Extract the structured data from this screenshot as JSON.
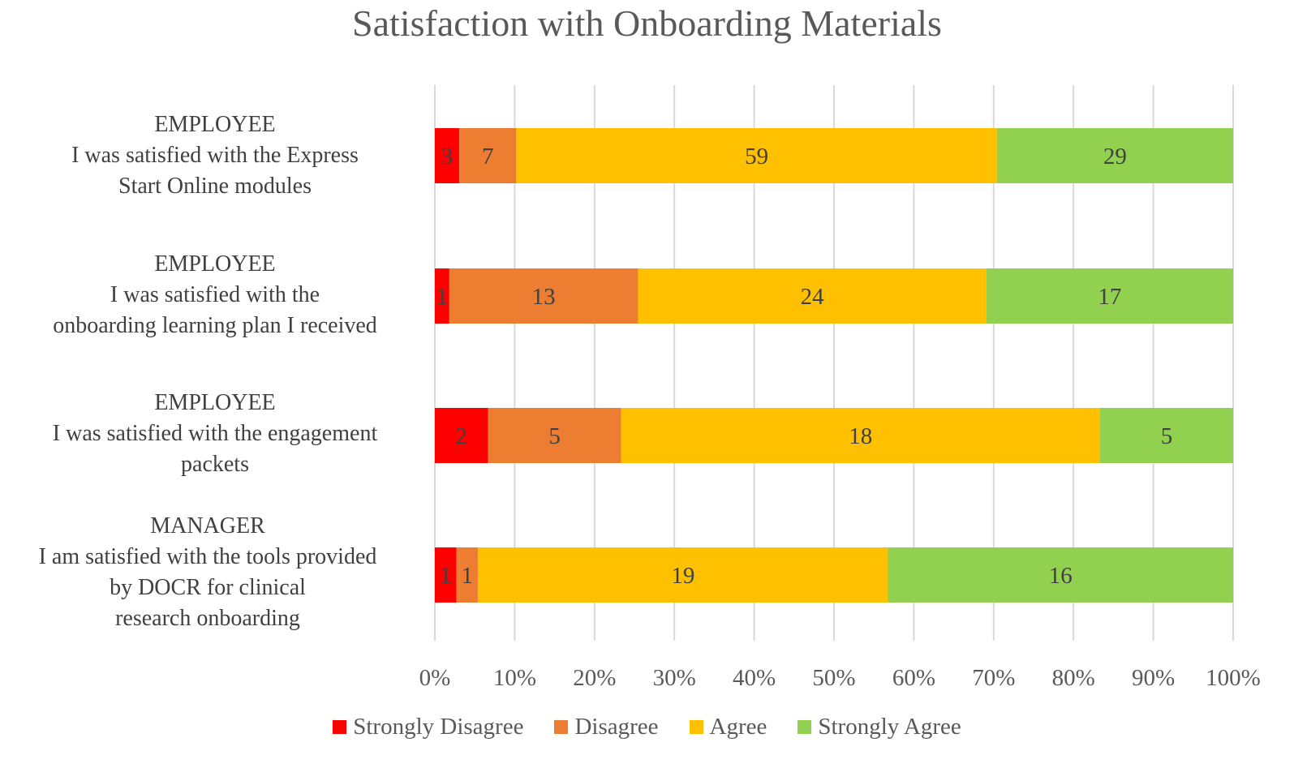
{
  "chart_data": {
    "type": "bar",
    "orientation": "horizontal",
    "stacked": "percent",
    "title": "Satisfaction with Onboarding Materials",
    "xlabel": "",
    "ylabel": "",
    "xlim": [
      0,
      100
    ],
    "x_ticks": [
      "0%",
      "10%",
      "20%",
      "30%",
      "40%",
      "50%",
      "60%",
      "70%",
      "80%",
      "90%",
      "100%"
    ],
    "grid": "vertical",
    "legend_position": "bottom",
    "categories": [
      {
        "group": "EMPLOYEE",
        "text": [
          "I was satisfied with the Express",
          "Start Online modules"
        ]
      },
      {
        "group": "EMPLOYEE",
        "text": [
          "I was satisfied with the",
          "onboarding learning plan I received"
        ]
      },
      {
        "group": "EMPLOYEE",
        "text": [
          "I was satisfied with the engagement",
          "packets"
        ]
      },
      {
        "group": "MANAGER",
        "text": [
          "I am satisfied with the tools provided",
          "by DOCR for clinical",
          "research onboarding"
        ]
      }
    ],
    "series": [
      {
        "name": "Strongly Disagree",
        "color": "#ff0000",
        "values": [
          3,
          1,
          2,
          1
        ]
      },
      {
        "name": "Disagree",
        "color": "#ed7d31",
        "values": [
          7,
          13,
          5,
          1
        ]
      },
      {
        "name": "Agree",
        "color": "#ffc000",
        "values": [
          59,
          24,
          18,
          19
        ]
      },
      {
        "name": "Strongly Agree",
        "color": "#92d050",
        "values": [
          29,
          17,
          5,
          16
        ]
      }
    ]
  }
}
